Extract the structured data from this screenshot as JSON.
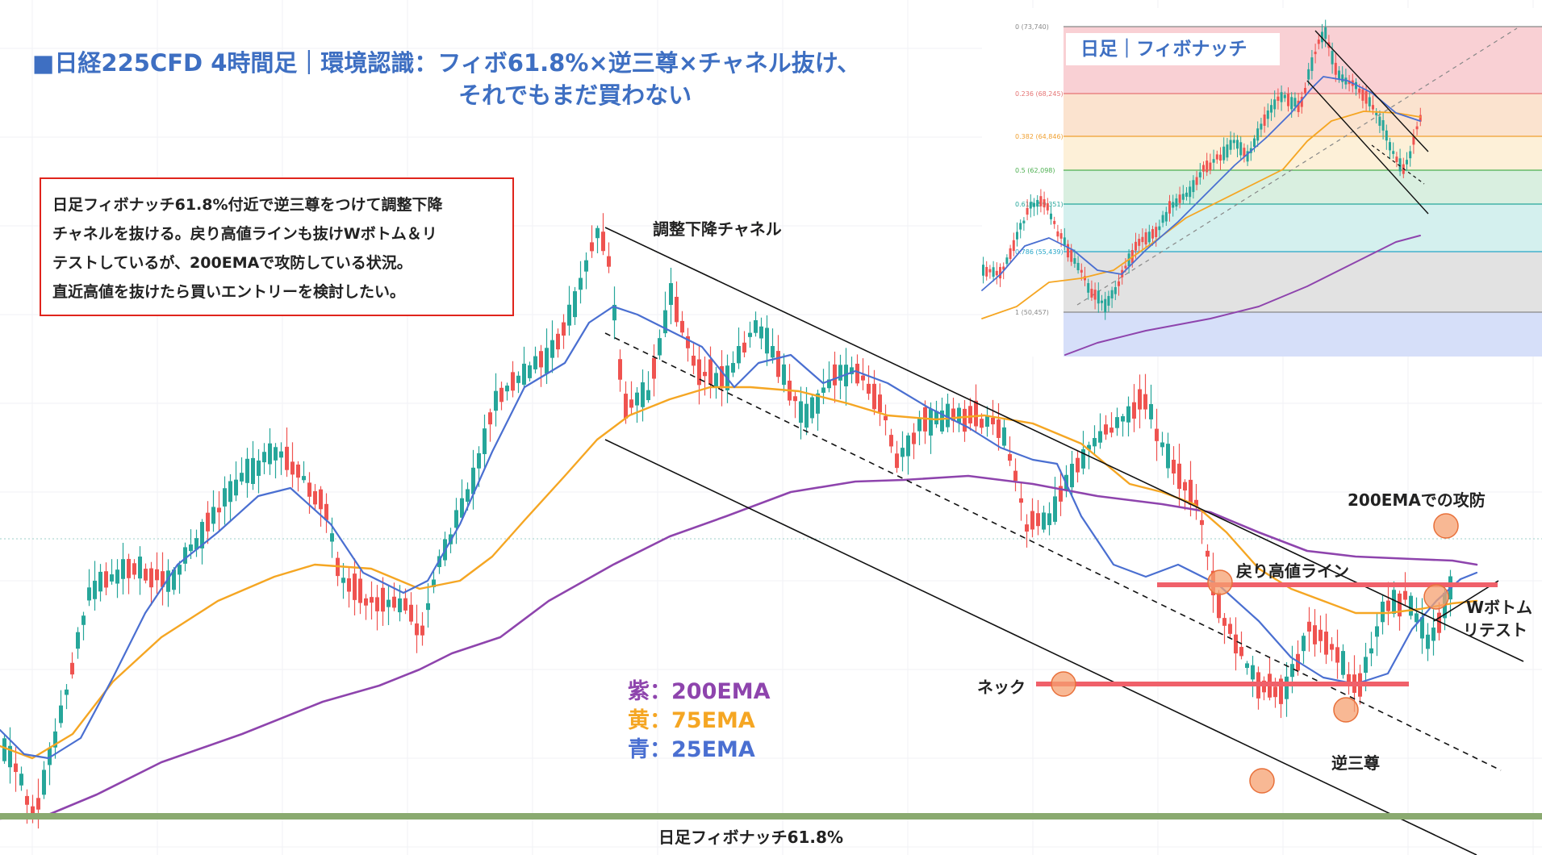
{
  "header": {
    "title_line1": "■日経225CFD 4時間足｜環境認識：フィボ61.8%×逆三尊×チャネル抜け、",
    "title_line2": "それでもまだ買わない"
  },
  "note": {
    "lines": [
      "日足フィボナッチ61.8%付近で逆三尊をつけて調整下降",
      "チャネルを抜ける。戻り高値ラインも抜けWボトム＆リ",
      "テストしているが、200EMAで攻防している状況。",
      "直近高値を抜けたら買いエントリーを検討したい。"
    ]
  },
  "annotations": {
    "channel": "調整下降チャネル",
    "neck": "ネック",
    "inverse_hs": "逆三尊",
    "pullback_high": "戻り高値ライン",
    "w_bottom_1": "Wボトム",
    "w_bottom_2": "リテスト",
    "ema200_battle": "200EMAでの攻防",
    "fib_daily": "日足フィボナッチ61.8%"
  },
  "legend": {
    "ema200": "紫：200EMA",
    "ema75": "黄：75EMA",
    "ema25": "青：25EMA"
  },
  "colors": {
    "up": "#26a69a",
    "down": "#ef5350",
    "ema200": "#8e44ad",
    "ema75": "#f5a623",
    "ema25": "#4a6fd1",
    "horizontal_line": "#f0606a",
    "fib_line": "#8aaa70",
    "marker": "#f5a070",
    "title": "#3e6fc2"
  },
  "inset": {
    "title": "日足｜フィボナッチ",
    "fib_levels": [
      {
        "ratio": "0",
        "price": "73,740",
        "label": "0 (73,740)"
      },
      {
        "ratio": "0.236",
        "price": "68,245",
        "label": "0.236 (68,245)"
      },
      {
        "ratio": "0.382",
        "price": "64,846",
        "label": "0.382 (64,846)"
      },
      {
        "ratio": "0.5",
        "price": "62,098",
        "label": "0.5 (62,098)"
      },
      {
        "ratio": "0.618",
        "price": "59,351",
        "label": "0.618 (59,351)"
      },
      {
        "ratio": "0.786",
        "price": "55,439",
        "label": "0.786 (55,439)"
      },
      {
        "ratio": "1",
        "price": "50,457",
        "label": "1 (50,457)"
      }
    ]
  },
  "chart_data": [
    {
      "type": "candlestick",
      "title": "日経225CFD 4時間足",
      "series": [
        {
          "name": "紫：200EMA"
        },
        {
          "name": "黄：75EMA"
        },
        {
          "name": "青：25EMA"
        }
      ],
      "horizontal_lines": [
        "戻り高値ライン",
        "ネック",
        "日足フィボナッチ61.8%"
      ],
      "channel": "調整下降チャネル",
      "grid": true
    },
    {
      "type": "candlestick",
      "title": "日足｜フィボナッチ",
      "fib_retracement": {
        "high": 73740,
        "low": 50457,
        "levels": [
          0,
          0.236,
          0.382,
          0.5,
          0.618,
          0.786,
          1
        ]
      }
    }
  ]
}
